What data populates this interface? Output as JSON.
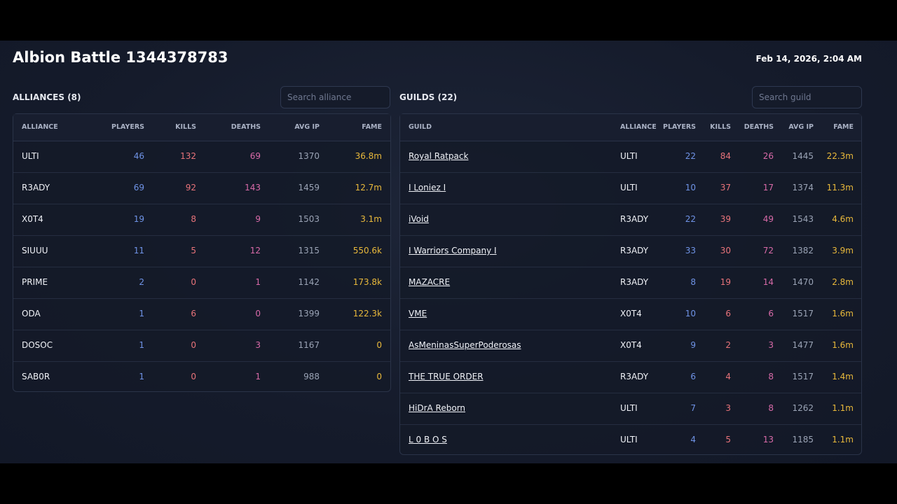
{
  "header": {
    "title": "Albion Battle 1344378783",
    "date": "Feb 14, 2026, 2:04 AM"
  },
  "alliances": {
    "label": "ALLIANCES (8)",
    "search_placeholder": "Search alliance",
    "columns": [
      "ALLIANCE",
      "PLAYERS",
      "KILLS",
      "DEATHS",
      "AVG IP",
      "FAME"
    ],
    "rows": [
      [
        "ULTI",
        46,
        132,
        69,
        1370,
        "36.8m"
      ],
      [
        "R3ADY",
        69,
        92,
        143,
        1459,
        "12.7m"
      ],
      [
        "X0T4",
        19,
        8,
        9,
        1503,
        "3.1m"
      ],
      [
        "SIUUU",
        11,
        5,
        12,
        1315,
        "550.6k"
      ],
      [
        "PRIME",
        2,
        0,
        1,
        1142,
        "173.8k"
      ],
      [
        "ODA",
        1,
        6,
        0,
        1399,
        "122.3k"
      ],
      [
        "DOSOC",
        1,
        0,
        3,
        1167,
        0
      ],
      [
        "SAB0R",
        1,
        0,
        1,
        988,
        0
      ]
    ]
  },
  "guilds": {
    "label": "GUILDS (22)",
    "search_placeholder": "Search guild",
    "columns": [
      "GUILD",
      "ALLIANCE",
      "PLAYERS",
      "KILLS",
      "DEATHS",
      "AVG IP",
      "FAME"
    ],
    "rows": [
      [
        "Royal Ratpack",
        "ULTI",
        22,
        84,
        26,
        1445,
        "22.3m"
      ],
      [
        "I Loniez I",
        "ULTI",
        10,
        37,
        17,
        1374,
        "11.3m"
      ],
      [
        "iVoid",
        "R3ADY",
        22,
        39,
        49,
        1543,
        "4.6m"
      ],
      [
        "I Warriors Company I",
        "R3ADY",
        33,
        30,
        72,
        1382,
        "3.9m"
      ],
      [
        "MAZACRE",
        "R3ADY",
        8,
        19,
        14,
        1470,
        "2.8m"
      ],
      [
        "VME",
        "X0T4",
        10,
        6,
        6,
        1517,
        "1.6m"
      ],
      [
        "AsMeninasSuperPoderosas",
        "X0T4",
        9,
        2,
        3,
        1477,
        "1.6m"
      ],
      [
        "THE TRUE ORDER",
        "R3ADY",
        6,
        4,
        8,
        1517,
        "1.4m"
      ],
      [
        "HiDrA Reborn",
        "ULTI",
        7,
        3,
        8,
        1262,
        "1.1m"
      ],
      [
        "L 0 B O S",
        "ULTI",
        4,
        5,
        13,
        1185,
        "1.1m"
      ]
    ]
  }
}
